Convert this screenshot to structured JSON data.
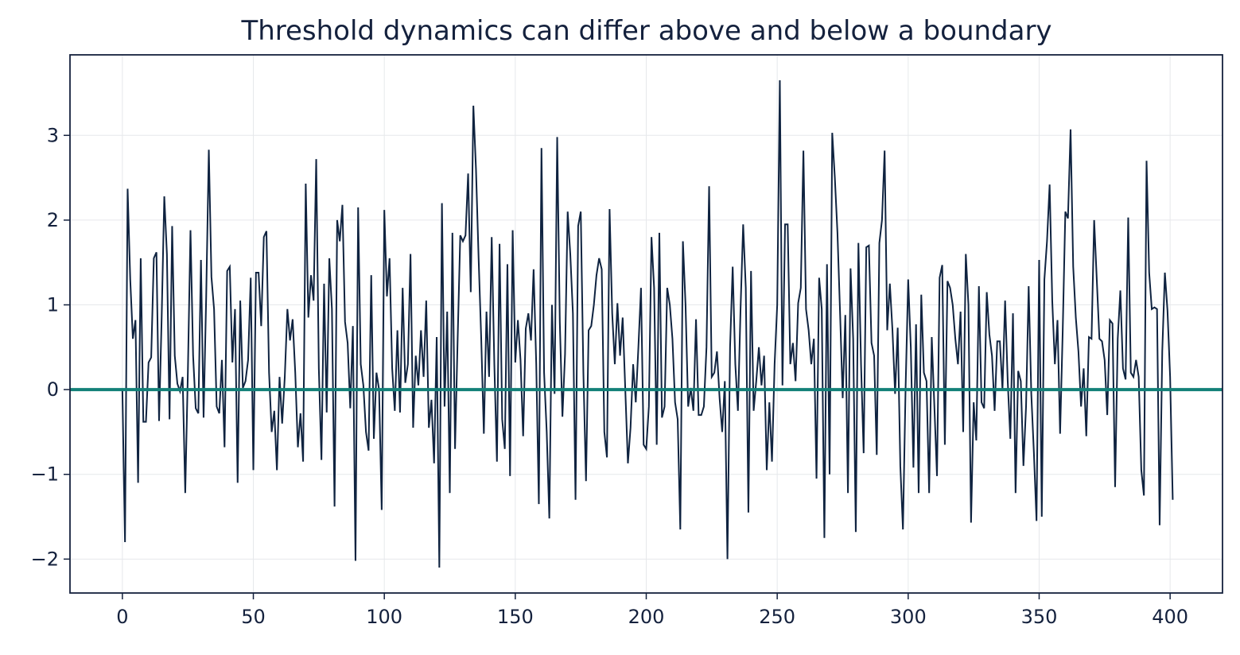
{
  "chart_data": {
    "type": "line",
    "title": "Threshold dynamics can differ above and below a boundary",
    "xlabel": "",
    "ylabel": "",
    "xlim": [
      -20,
      420
    ],
    "ylim": [
      -2.4,
      3.95
    ],
    "x_ticks": [
      0,
      50,
      100,
      150,
      200,
      250,
      300,
      350,
      400
    ],
    "y_ticks": [
      -2,
      -1,
      0,
      1,
      2,
      3
    ],
    "x_tick_labels": [
      "0",
      "50",
      "100",
      "150",
      "200",
      "250",
      "300",
      "350",
      "400"
    ],
    "y_tick_labels": [
      "−2",
      "−1",
      "0",
      "1",
      "2",
      "3"
    ],
    "grid": true,
    "threshold": 0,
    "colors": {
      "series": "#0f2340",
      "threshold": "#138078",
      "axis": "#14213d",
      "grid": "#e6e8eb"
    },
    "series": [
      {
        "x_start": 0,
        "x_step": 1,
        "values": [
          0.0,
          -1.8,
          2.37,
          1.3,
          0.6,
          0.82,
          -1.1,
          1.55,
          -0.38,
          -0.38,
          0.32,
          0.38,
          1.55,
          1.62,
          -0.37,
          0.85,
          2.28,
          1.6,
          -0.35,
          1.93,
          0.4,
          0.07,
          -0.02,
          0.15,
          -1.22,
          0.2,
          1.88,
          0.4,
          -0.22,
          -0.28,
          1.53,
          -0.33,
          1.1,
          2.83,
          1.33,
          0.95,
          -0.2,
          -0.28,
          0.35,
          -0.68,
          1.4,
          1.45,
          0.32,
          0.95,
          -1.1,
          1.05,
          0.02,
          0.1,
          0.35,
          1.32,
          -0.95,
          1.38,
          1.38,
          0.75,
          1.8,
          1.87,
          0.2,
          -0.5,
          -0.25,
          -0.95,
          0.15,
          -0.4,
          0.15,
          0.95,
          0.58,
          0.83,
          0.2,
          -0.68,
          -0.28,
          -0.85,
          2.43,
          0.85,
          1.35,
          1.05,
          2.72,
          0.25,
          -0.83,
          1.25,
          -0.27,
          1.55,
          0.95,
          -1.38,
          2.0,
          1.75,
          2.18,
          0.8,
          0.55,
          -0.22,
          0.75,
          -2.02,
          2.15,
          0.3,
          0.05,
          -0.5,
          -0.72,
          1.35,
          -0.58,
          0.2,
          0.0,
          -1.42,
          2.12,
          1.1,
          1.55,
          0.25,
          -0.25,
          0.7,
          -0.27,
          1.2,
          0.08,
          0.3,
          1.6,
          -0.45,
          0.4,
          0.05,
          0.7,
          0.15,
          1.05,
          -0.45,
          -0.12,
          -0.87,
          0.62,
          -2.1,
          2.2,
          -0.2,
          0.92,
          -1.22,
          1.85,
          -0.7,
          0.6,
          1.82,
          1.75,
          1.82,
          2.55,
          1.15,
          3.35,
          2.6,
          1.55,
          0.6,
          -0.52,
          0.92,
          0.15,
          1.8,
          0.3,
          -0.85,
          1.72,
          -0.35,
          -0.7,
          1.48,
          -1.02,
          1.88,
          0.32,
          0.82,
          0.35,
          -0.55,
          0.72,
          0.9,
          0.58,
          1.42,
          0.3,
          -1.35,
          2.85,
          0.2,
          -0.5,
          -1.52,
          1.0,
          -0.05,
          2.98,
          0.8,
          -0.32,
          0.42,
          2.1,
          1.6,
          0.9,
          -1.3,
          1.93,
          2.1,
          0.2,
          -1.08,
          0.7,
          0.75,
          1.0,
          1.35,
          1.55,
          1.42,
          -0.5,
          -0.8,
          2.13,
          0.9,
          0.3,
          1.02,
          0.4,
          0.85,
          0.0,
          -0.87,
          -0.45,
          0.3,
          -0.15,
          0.5,
          1.2,
          -0.65,
          -0.7,
          -0.2,
          1.8,
          1.2,
          -0.65,
          1.85,
          -0.33,
          -0.2,
          1.2,
          1.0,
          0.6,
          -0.15,
          -0.35,
          -1.65,
          1.75,
          1.0,
          -0.2,
          0.02,
          -0.25,
          0.83,
          -0.3,
          -0.3,
          -0.2,
          0.5,
          2.4,
          0.15,
          0.2,
          0.45,
          -0.1,
          -0.5,
          0.1,
          -2.0,
          0.5,
          1.45,
          0.3,
          -0.25,
          0.95,
          1.95,
          1.2,
          -1.45,
          1.4,
          -0.25,
          0.1,
          0.5,
          0.05,
          0.4,
          -0.95,
          -0.15,
          -0.85,
          0.3,
          1.0,
          3.65,
          0.05,
          1.95,
          1.95,
          0.3,
          0.55,
          0.1,
          1.02,
          1.2,
          2.82,
          0.95,
          0.7,
          0.3,
          0.6,
          -1.05,
          1.32,
          0.95,
          -1.75,
          1.48,
          -1.0,
          3.03,
          2.5,
          1.85,
          0.9,
          -0.1,
          0.88,
          -1.22,
          1.43,
          0.6,
          -1.68,
          1.73,
          0.3,
          -0.75,
          1.68,
          1.7,
          0.55,
          0.4,
          -0.77,
          1.73,
          2.0,
          2.82,
          0.7,
          1.25,
          0.7,
          -0.05,
          0.73,
          -0.9,
          -1.65,
          0.0,
          1.3,
          0.5,
          -0.92,
          0.77,
          -1.22,
          1.12,
          0.2,
          0.1,
          -1.22,
          0.62,
          -0.2,
          -1.02,
          1.32,
          1.47,
          -0.65,
          1.28,
          1.2,
          1.0,
          0.6,
          0.3,
          0.92,
          -0.5,
          1.6,
          1.0,
          -1.57,
          -0.15,
          -0.6,
          1.22,
          -0.15,
          -0.22,
          1.15,
          0.65,
          0.4,
          -0.25,
          0.57,
          0.57,
          0.0,
          1.05,
          0.1,
          -0.58,
          0.9,
          -1.22,
          0.22,
          0.1,
          -0.9,
          -0.2,
          1.22,
          -0.05,
          -0.75,
          -1.55,
          1.53,
          -1.5,
          1.3,
          1.75,
          2.42,
          1.05,
          0.3,
          0.82,
          -0.52,
          0.7,
          2.1,
          2.02,
          3.07,
          1.45,
          0.85,
          0.45,
          -0.2,
          0.25,
          -0.55,
          0.62,
          0.6,
          2.0,
          1.3,
          0.6,
          0.57,
          0.35,
          -0.3,
          0.82,
          0.78,
          -1.15,
          0.6,
          1.17,
          0.25,
          0.12,
          2.03,
          0.2,
          0.15,
          0.35,
          0.15,
          -0.95,
          -1.25,
          2.7,
          1.38,
          0.95,
          0.97,
          0.95,
          -1.6,
          0.45,
          1.38,
          0.93,
          0.15,
          -1.3
        ]
      }
    ]
  }
}
